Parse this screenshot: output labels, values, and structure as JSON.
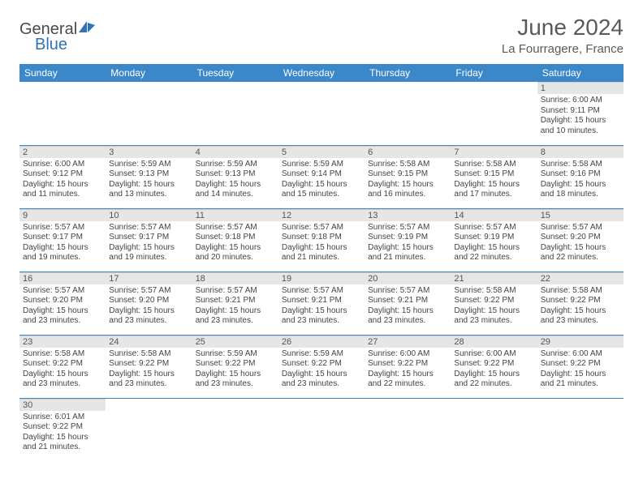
{
  "brand": {
    "part1": "General",
    "part2": "Blue"
  },
  "title": "June 2024",
  "location": "La Fourragere, France",
  "colors": {
    "header_bg": "#3b87c8",
    "header_text": "#ffffff",
    "daynum_bg": "#e6e6e6",
    "border": "#3b87c8",
    "logo_blue": "#2f75b5"
  },
  "font": {
    "family": "Arial",
    "title_size": 28,
    "header_size": 12,
    "body_size": 10
  },
  "weekdays": [
    "Sunday",
    "Monday",
    "Tuesday",
    "Wednesday",
    "Thursday",
    "Friday",
    "Saturday"
  ],
  "grid": [
    [
      null,
      null,
      null,
      null,
      null,
      null,
      {
        "n": "1",
        "sunrise": "6:00 AM",
        "sunset": "9:11 PM",
        "dl_h": 15,
        "dl_m": 10
      }
    ],
    [
      {
        "n": "2",
        "sunrise": "6:00 AM",
        "sunset": "9:12 PM",
        "dl_h": 15,
        "dl_m": 11
      },
      {
        "n": "3",
        "sunrise": "5:59 AM",
        "sunset": "9:13 PM",
        "dl_h": 15,
        "dl_m": 13
      },
      {
        "n": "4",
        "sunrise": "5:59 AM",
        "sunset": "9:13 PM",
        "dl_h": 15,
        "dl_m": 14
      },
      {
        "n": "5",
        "sunrise": "5:59 AM",
        "sunset": "9:14 PM",
        "dl_h": 15,
        "dl_m": 15
      },
      {
        "n": "6",
        "sunrise": "5:58 AM",
        "sunset": "9:15 PM",
        "dl_h": 15,
        "dl_m": 16
      },
      {
        "n": "7",
        "sunrise": "5:58 AM",
        "sunset": "9:15 PM",
        "dl_h": 15,
        "dl_m": 17
      },
      {
        "n": "8",
        "sunrise": "5:58 AM",
        "sunset": "9:16 PM",
        "dl_h": 15,
        "dl_m": 18
      }
    ],
    [
      {
        "n": "9",
        "sunrise": "5:57 AM",
        "sunset": "9:17 PM",
        "dl_h": 15,
        "dl_m": 19
      },
      {
        "n": "10",
        "sunrise": "5:57 AM",
        "sunset": "9:17 PM",
        "dl_h": 15,
        "dl_m": 19
      },
      {
        "n": "11",
        "sunrise": "5:57 AM",
        "sunset": "9:18 PM",
        "dl_h": 15,
        "dl_m": 20
      },
      {
        "n": "12",
        "sunrise": "5:57 AM",
        "sunset": "9:18 PM",
        "dl_h": 15,
        "dl_m": 21
      },
      {
        "n": "13",
        "sunrise": "5:57 AM",
        "sunset": "9:19 PM",
        "dl_h": 15,
        "dl_m": 21
      },
      {
        "n": "14",
        "sunrise": "5:57 AM",
        "sunset": "9:19 PM",
        "dl_h": 15,
        "dl_m": 22
      },
      {
        "n": "15",
        "sunrise": "5:57 AM",
        "sunset": "9:20 PM",
        "dl_h": 15,
        "dl_m": 22
      }
    ],
    [
      {
        "n": "16",
        "sunrise": "5:57 AM",
        "sunset": "9:20 PM",
        "dl_h": 15,
        "dl_m": 23
      },
      {
        "n": "17",
        "sunrise": "5:57 AM",
        "sunset": "9:20 PM",
        "dl_h": 15,
        "dl_m": 23
      },
      {
        "n": "18",
        "sunrise": "5:57 AM",
        "sunset": "9:21 PM",
        "dl_h": 15,
        "dl_m": 23
      },
      {
        "n": "19",
        "sunrise": "5:57 AM",
        "sunset": "9:21 PM",
        "dl_h": 15,
        "dl_m": 23
      },
      {
        "n": "20",
        "sunrise": "5:57 AM",
        "sunset": "9:21 PM",
        "dl_h": 15,
        "dl_m": 23
      },
      {
        "n": "21",
        "sunrise": "5:58 AM",
        "sunset": "9:22 PM",
        "dl_h": 15,
        "dl_m": 23
      },
      {
        "n": "22",
        "sunrise": "5:58 AM",
        "sunset": "9:22 PM",
        "dl_h": 15,
        "dl_m": 23
      }
    ],
    [
      {
        "n": "23",
        "sunrise": "5:58 AM",
        "sunset": "9:22 PM",
        "dl_h": 15,
        "dl_m": 23
      },
      {
        "n": "24",
        "sunrise": "5:58 AM",
        "sunset": "9:22 PM",
        "dl_h": 15,
        "dl_m": 23
      },
      {
        "n": "25",
        "sunrise": "5:59 AM",
        "sunset": "9:22 PM",
        "dl_h": 15,
        "dl_m": 23
      },
      {
        "n": "26",
        "sunrise": "5:59 AM",
        "sunset": "9:22 PM",
        "dl_h": 15,
        "dl_m": 23
      },
      {
        "n": "27",
        "sunrise": "6:00 AM",
        "sunset": "9:22 PM",
        "dl_h": 15,
        "dl_m": 22
      },
      {
        "n": "28",
        "sunrise": "6:00 AM",
        "sunset": "9:22 PM",
        "dl_h": 15,
        "dl_m": 22
      },
      {
        "n": "29",
        "sunrise": "6:00 AM",
        "sunset": "9:22 PM",
        "dl_h": 15,
        "dl_m": 21
      }
    ],
    [
      {
        "n": "30",
        "sunrise": "6:01 AM",
        "sunset": "9:22 PM",
        "dl_h": 15,
        "dl_m": 21
      },
      null,
      null,
      null,
      null,
      null,
      null
    ]
  ]
}
